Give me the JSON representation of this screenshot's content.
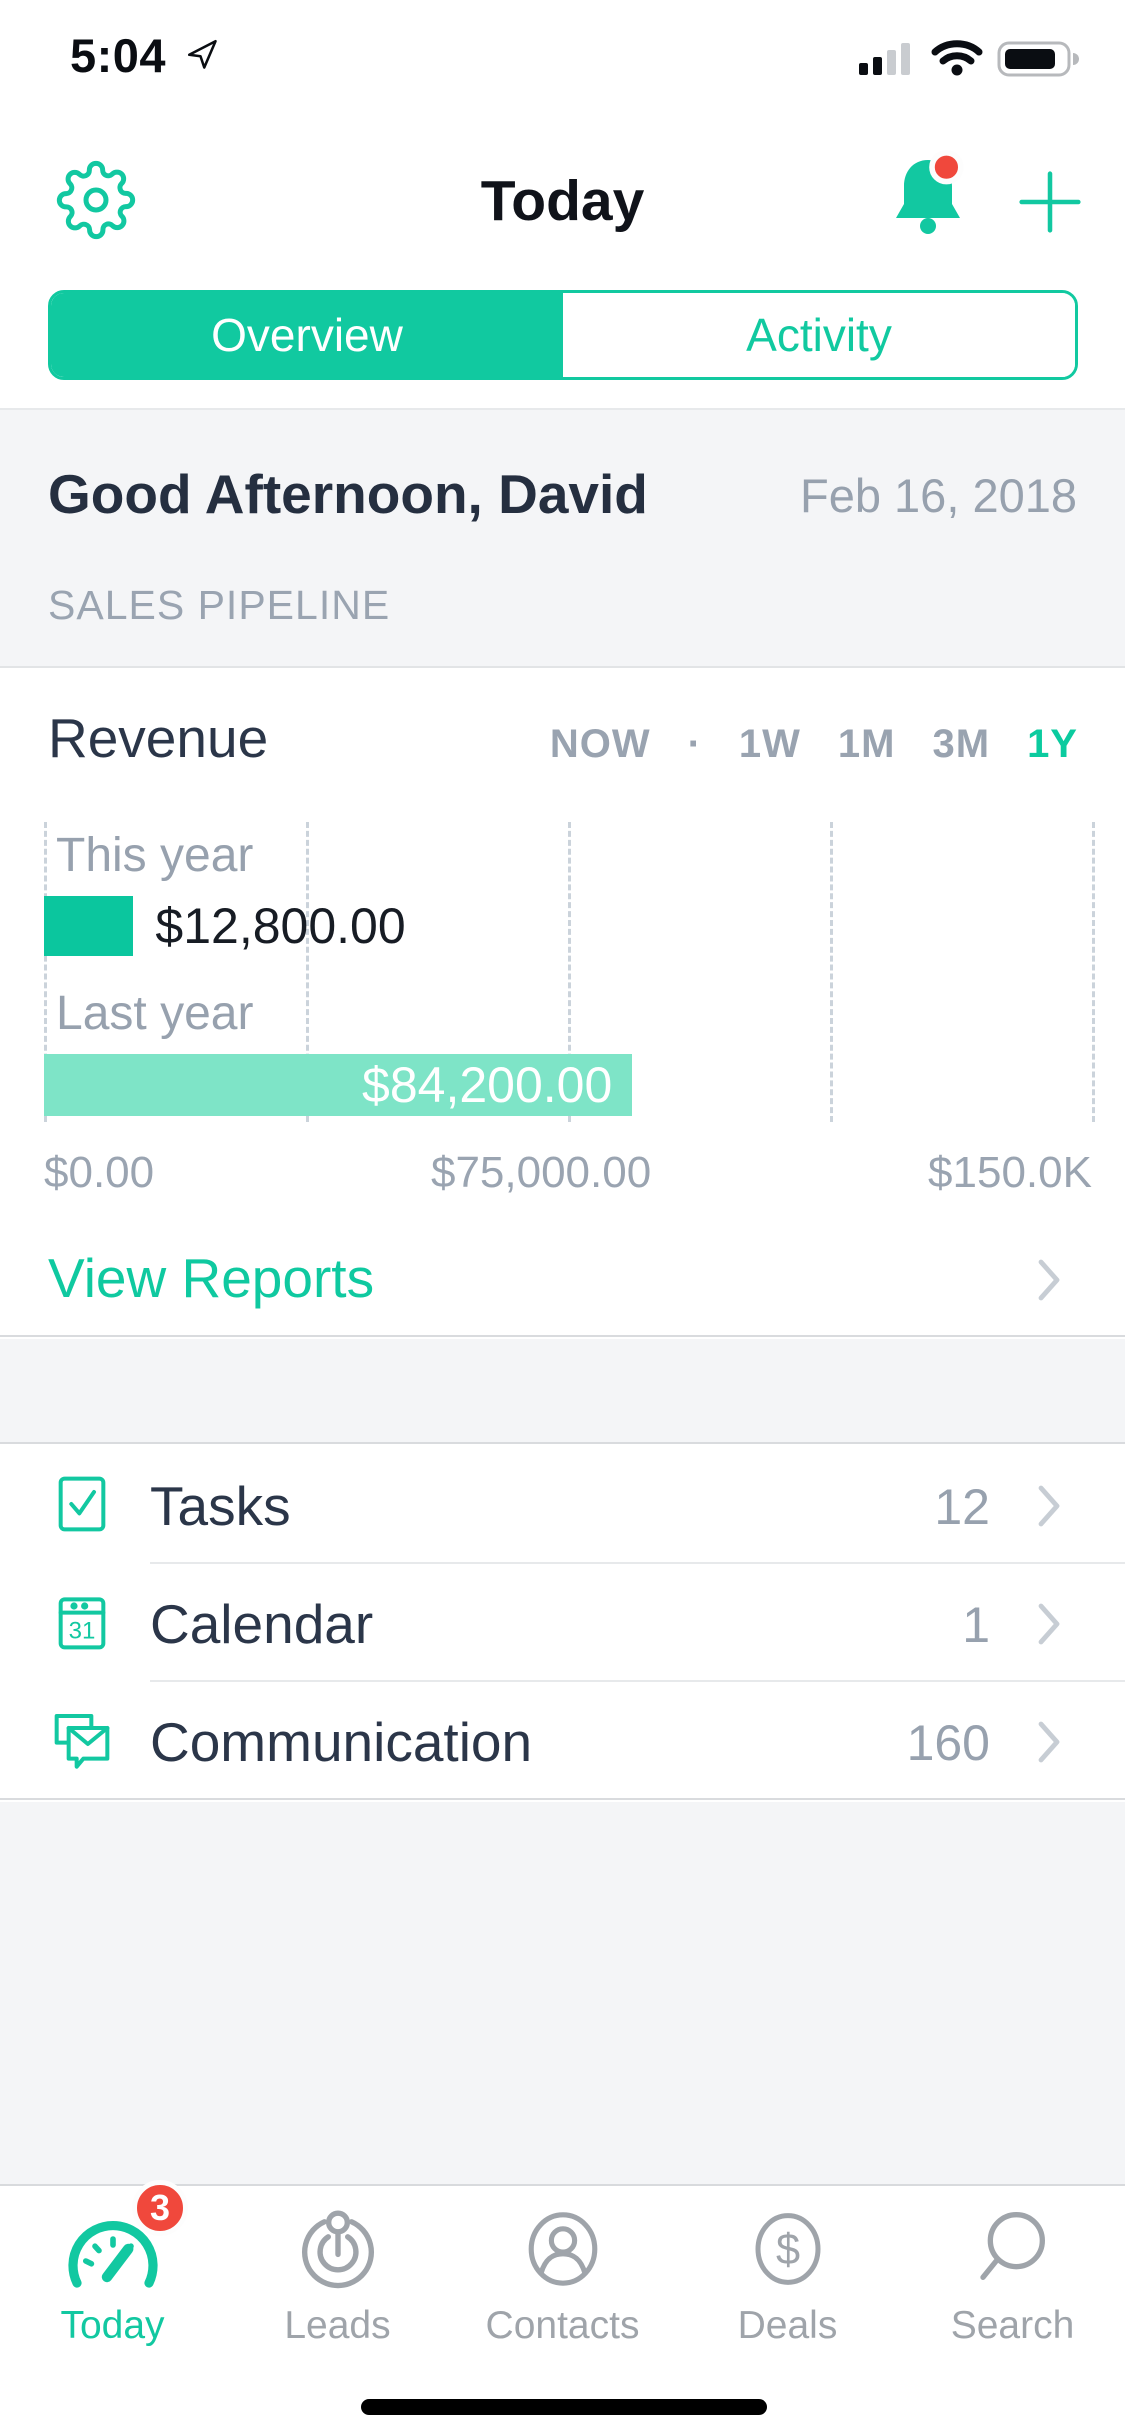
{
  "status_bar": {
    "time": "5:04"
  },
  "header": {
    "title": "Today"
  },
  "segmented": {
    "overview": "Overview",
    "activity": "Activity"
  },
  "greeting": {
    "title": "Good Afternoon, David",
    "date": "Feb 16, 2018",
    "section_label": "SALES PIPELINE"
  },
  "revenue": {
    "title": "Revenue",
    "ranges": [
      "NOW",
      "1W",
      "1M",
      "3M",
      "1Y"
    ],
    "range_separator": "·",
    "selected_range": "1Y",
    "view_reports": "View Reports"
  },
  "chart_data": {
    "type": "bar",
    "orientation": "horizontal",
    "title": "Revenue",
    "categories": [
      "This year",
      "Last year"
    ],
    "values": [
      12800,
      84200
    ],
    "value_labels": [
      "$12,800.00",
      "$84,200.00"
    ],
    "xlim": [
      0,
      150000
    ],
    "x_ticks": [
      0,
      37500,
      75000,
      112500,
      150000
    ],
    "x_tick_labels": [
      "$0.00",
      "$75,000.00",
      "$150.0K"
    ],
    "grid": "vertical-dashed",
    "bar_colors": [
      "#0BC69E",
      "#7EE4C7"
    ],
    "legend_position": "none"
  },
  "list": {
    "items": [
      {
        "label": "Tasks",
        "count": "12",
        "icon": "tasks-checkbox-icon"
      },
      {
        "label": "Calendar",
        "count": "1",
        "icon": "calendar-icon"
      },
      {
        "label": "Communication",
        "count": "160",
        "icon": "communication-icon"
      }
    ]
  },
  "tab_bar": {
    "items": [
      {
        "label": "Today",
        "badge": "3",
        "active": true,
        "icon": "gauge-icon"
      },
      {
        "label": "Leads",
        "active": false,
        "icon": "leads-pin-icon"
      },
      {
        "label": "Contacts",
        "active": false,
        "icon": "contact-person-icon"
      },
      {
        "label": "Deals",
        "active": false,
        "icon": "dollar-circle-icon"
      },
      {
        "label": "Search",
        "active": false,
        "icon": "search-icon"
      }
    ]
  },
  "colors": {
    "accent_green": "#0FC9A0",
    "light_green_bar": "#7EE4C7",
    "alert_red": "#F0483C",
    "dark_text": "#2B3649",
    "gray_text": "#97A1AE",
    "background_gray": "#F4F5F7"
  }
}
